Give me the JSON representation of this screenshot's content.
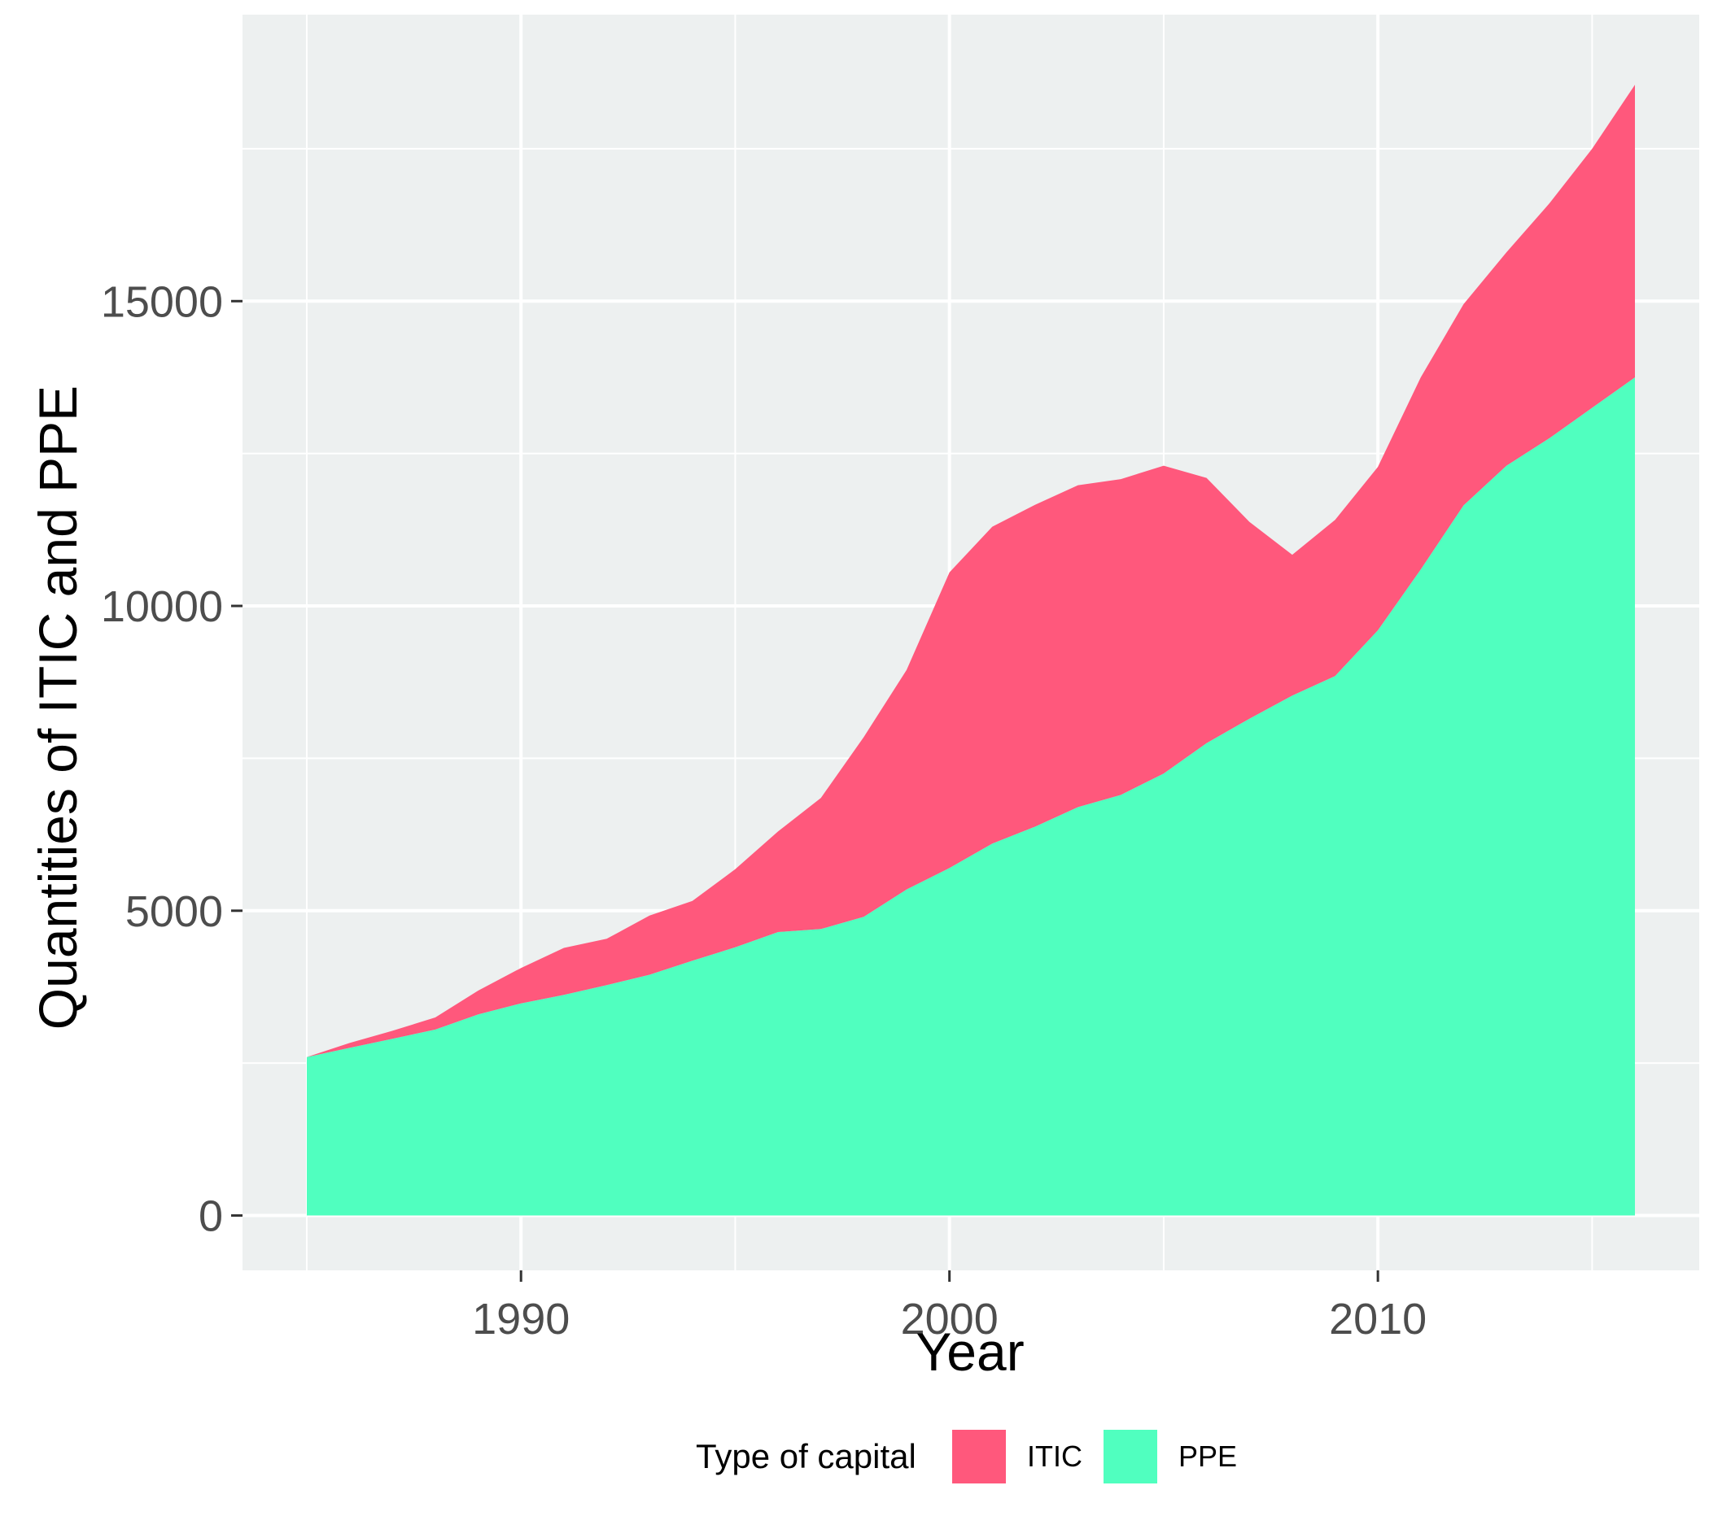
{
  "chart_data": {
    "type": "area",
    "stacked": true,
    "xlabel": "Year",
    "ylabel": "Quantities of ITIC and PPE",
    "x": [
      1985,
      1986,
      1987,
      1988,
      1989,
      1990,
      1991,
      1992,
      1993,
      1994,
      1995,
      1996,
      1997,
      1998,
      1999,
      2000,
      2001,
      2002,
      2003,
      2004,
      2005,
      2006,
      2007,
      2008,
      2009,
      2010,
      2011,
      2012,
      2013,
      2014,
      2015,
      2016
    ],
    "series": [
      {
        "name": "PPE",
        "color": "#50ffbf",
        "values": [
          2600,
          2750,
          2900,
          3050,
          3300,
          3480,
          3620,
          3780,
          3950,
          4180,
          4400,
          4650,
          4700,
          4900,
          5350,
          5700,
          6100,
          6380,
          6700,
          6900,
          7250,
          7750,
          8150,
          8530,
          8850,
          9600,
          10600,
          11650,
          12300,
          12750,
          13250,
          13750
        ]
      },
      {
        "name": "ITIC",
        "color": "#ff587c",
        "values": [
          0,
          80,
          130,
          200,
          390,
          580,
          770,
          760,
          970,
          980,
          1280,
          1650,
          2150,
          2950,
          3600,
          4850,
          5200,
          5280,
          5280,
          5180,
          5050,
          4350,
          3230,
          2310,
          2560,
          2680,
          3150,
          3300,
          3500,
          3850,
          4250,
          4800
        ]
      }
    ],
    "xticks": [
      1990,
      2000,
      2010
    ],
    "yticks": [
      0,
      5000,
      10000,
      15000
    ],
    "xlim": [
      1983.5,
      2017.5
    ],
    "ylim": [
      -900,
      19700
    ],
    "grid": true,
    "legend": {
      "title": "Type of capital",
      "position": "bottom",
      "items": [
        {
          "label": "ITIC",
          "color": "#ff587c"
        },
        {
          "label": "PPE",
          "color": "#50ffbf"
        }
      ]
    },
    "panel_color": "#edf0f0",
    "grid_color": "#ffffff"
  }
}
